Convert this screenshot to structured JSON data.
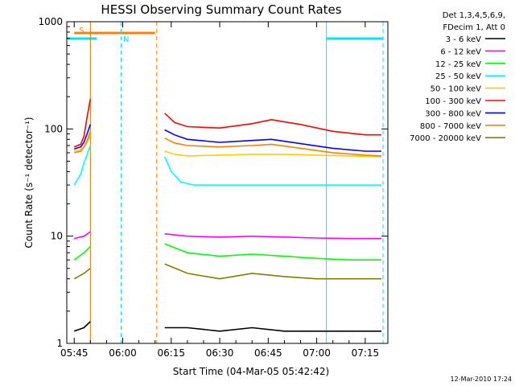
{
  "chart_data": {
    "type": "line",
    "title": "HESSI Observing Summary Count Rates",
    "xlabel": "Start Time (04-Mar-05 05:42:42)",
    "ylabel": "Count Rate (s⁻¹ detector⁻¹)",
    "yscale": "log",
    "ylim": [
      1,
      1000
    ],
    "xlim": [
      "05:42:42",
      "07:22:00"
    ],
    "x_ticks": [
      "05:45",
      "06:00",
      "06:15",
      "06:30",
      "06:45",
      "07:00",
      "07:15"
    ],
    "y_ticks": [
      "1",
      "10",
      "100",
      "1000"
    ],
    "legend_header": [
      "Det 1,3,4,5,6,9,",
      "FDecim 1, Att 0"
    ],
    "footer": "12-Mar-2010 17:24",
    "flags": [
      {
        "label": "S",
        "start": "05:45:00",
        "end": "06:10:00",
        "color": "#ff8000"
      },
      {
        "label": "N",
        "start": "05:42:42",
        "end": "05:52:00",
        "color": "#00e5ff"
      },
      {
        "label": "",
        "start": "07:03:00",
        "end": "07:20:30",
        "color": "#00e5ff"
      }
    ],
    "vlines": [
      {
        "time": "05:50:00",
        "color": "#cc7a00",
        "style": "solid"
      },
      {
        "time": "06:10:30",
        "color": "#ff8000",
        "style": "dashed"
      },
      {
        "time": "05:59:30",
        "color": "#00e5ff",
        "style": "dashed"
      },
      {
        "time": "07:03:00",
        "color": "#00e5ff",
        "style": "solid"
      },
      {
        "time": "07:20:30",
        "color": "#00e5ff",
        "style": "dashed"
      }
    ],
    "data_gaps": [
      [
        "05:50:30",
        "06:13:00"
      ]
    ],
    "series": [
      {
        "name": "3 - 6 keV",
        "color": "#000000",
        "x": [
          "05:45",
          "05:48",
          "05:50",
          "06:13",
          "06:20",
          "06:30",
          "06:40",
          "06:50",
          "07:00",
          "07:10",
          "07:20"
        ],
        "values": [
          1.3,
          1.4,
          1.6,
          1.4,
          1.4,
          1.3,
          1.4,
          1.3,
          1.3,
          1.3,
          1.3
        ]
      },
      {
        "name": "6 - 12 keV",
        "color": "#ff00ff",
        "x": [
          "05:45",
          "05:48",
          "05:50",
          "06:13",
          "06:20",
          "06:30",
          "06:40",
          "06:50",
          "07:00",
          "07:10",
          "07:20"
        ],
        "values": [
          9.5,
          10,
          11,
          10.5,
          10,
          9.8,
          10,
          9.8,
          9.6,
          9.5,
          9.5
        ]
      },
      {
        "name": "12 - 25 keV",
        "color": "#00ff00",
        "x": [
          "05:45",
          "05:48",
          "05:50",
          "06:13",
          "06:20",
          "06:30",
          "06:40",
          "06:50",
          "07:00",
          "07:10",
          "07:20"
        ],
        "values": [
          6,
          7,
          8,
          8.5,
          7,
          6.5,
          6.8,
          6.5,
          6.2,
          6,
          6
        ]
      },
      {
        "name": "25 - 50 keV",
        "color": "#00ffff",
        "x": [
          "05:45",
          "05:47",
          "05:48",
          "05:49",
          "05:50",
          "06:13",
          "06:15",
          "06:18",
          "06:22",
          "06:30",
          "06:40",
          "06:50",
          "07:00",
          "07:10",
          "07:20"
        ],
        "values": [
          30,
          38,
          48,
          58,
          70,
          55,
          40,
          32,
          30,
          30,
          30,
          30,
          30,
          30,
          30
        ]
      },
      {
        "name": "50 - 100 keV",
        "color": "#ffcc00",
        "x": [
          "05:45",
          "05:47",
          "05:48",
          "05:49",
          "05:50",
          "06:13",
          "06:16",
          "06:20",
          "06:30",
          "06:40",
          "06:50",
          "07:00",
          "07:10",
          "07:20"
        ],
        "values": [
          62,
          64,
          68,
          75,
          88,
          62,
          58,
          56,
          57,
          58,
          58,
          57,
          56,
          55
        ]
      },
      {
        "name": "100 - 300 keV",
        "color": "#ff0000",
        "x": [
          "05:45",
          "05:47",
          "05:48",
          "05:49",
          "05:50",
          "06:13",
          "06:16",
          "06:20",
          "06:30",
          "06:40",
          "06:46",
          "06:55",
          "07:05",
          "07:15",
          "07:20"
        ],
        "values": [
          68,
          72,
          85,
          130,
          190,
          140,
          115,
          105,
          102,
          112,
          122,
          110,
          95,
          88,
          88
        ]
      },
      {
        "name": "300 - 800 keV",
        "color": "#0000ff",
        "x": [
          "05:45",
          "05:47",
          "05:48",
          "05:49",
          "05:50",
          "06:13",
          "06:16",
          "06:20",
          "06:30",
          "06:40",
          "06:46",
          "06:55",
          "07:05",
          "07:15",
          "07:20"
        ],
        "values": [
          65,
          68,
          75,
          90,
          110,
          98,
          88,
          80,
          75,
          78,
          80,
          73,
          66,
          62,
          62
        ]
      },
      {
        "name": "800 - 7000 keV",
        "color": "#ff8000",
        "x": [
          "05:45",
          "05:47",
          "05:48",
          "05:49",
          "05:50",
          "06:13",
          "06:16",
          "06:20",
          "06:30",
          "06:40",
          "06:46",
          "06:55",
          "07:05",
          "07:15",
          "07:20"
        ],
        "values": [
          60,
          62,
          68,
          78,
          95,
          82,
          74,
          70,
          68,
          70,
          72,
          66,
          60,
          57,
          56
        ]
      },
      {
        "name": "7000 - 20000 keV",
        "color": "#808000",
        "x": [
          "05:45",
          "05:48",
          "05:50",
          "06:13",
          "06:20",
          "06:30",
          "06:40",
          "06:50",
          "07:00",
          "07:10",
          "07:20"
        ],
        "values": [
          4,
          4.5,
          5,
          5.5,
          4.5,
          4,
          4.5,
          4.2,
          4,
          4,
          4
        ]
      }
    ]
  }
}
